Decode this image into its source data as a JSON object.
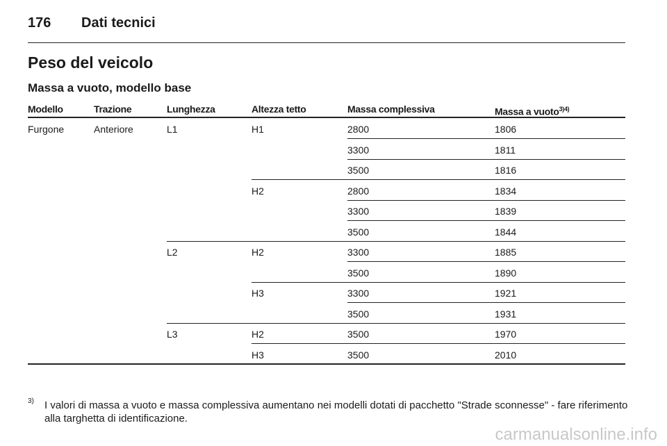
{
  "header": {
    "page_number": "176",
    "section": "Dati tecnici"
  },
  "title": "Peso del veicolo",
  "subtitle": "Massa a vuoto, modello base",
  "table": {
    "columns": [
      {
        "label": "Modello"
      },
      {
        "label": "Trazione"
      },
      {
        "label": "Lunghezza"
      },
      {
        "label": "Altezza tetto"
      },
      {
        "label": "Massa complessiva"
      },
      {
        "label": "Massa a vuoto",
        "sup": "3)4)"
      }
    ],
    "rows": [
      {
        "cells": [
          "Furgone",
          "Anteriore",
          "L1",
          "H1",
          2800,
          1806
        ]
      },
      {
        "cells": [
          3300,
          1811
        ]
      },
      {
        "cells": [
          3500,
          1816
        ]
      },
      {
        "cells": [
          "H2",
          2800,
          1834
        ]
      },
      {
        "cells": [
          3300,
          1839
        ]
      },
      {
        "cells": [
          3500,
          1844
        ]
      },
      {
        "cells": [
          "L2",
          "H2",
          3300,
          1885
        ]
      },
      {
        "cells": [
          3500,
          1890
        ]
      },
      {
        "cells": [
          "H3",
          3300,
          1921
        ]
      },
      {
        "cells": [
          3500,
          1931
        ]
      },
      {
        "cells": [
          "L3",
          "H2",
          3500,
          1970
        ]
      },
      {
        "cells": [
          "H3",
          3500,
          2010
        ]
      }
    ]
  },
  "footnote": {
    "marker": "3)",
    "text": "I valori di massa a vuoto e massa complessiva aumentano nei modelli dotati di pacchetto \"Strade sconnesse\" - fare riferimento alla targhetta di identificazione."
  },
  "watermark": "carmanualsonline.info"
}
